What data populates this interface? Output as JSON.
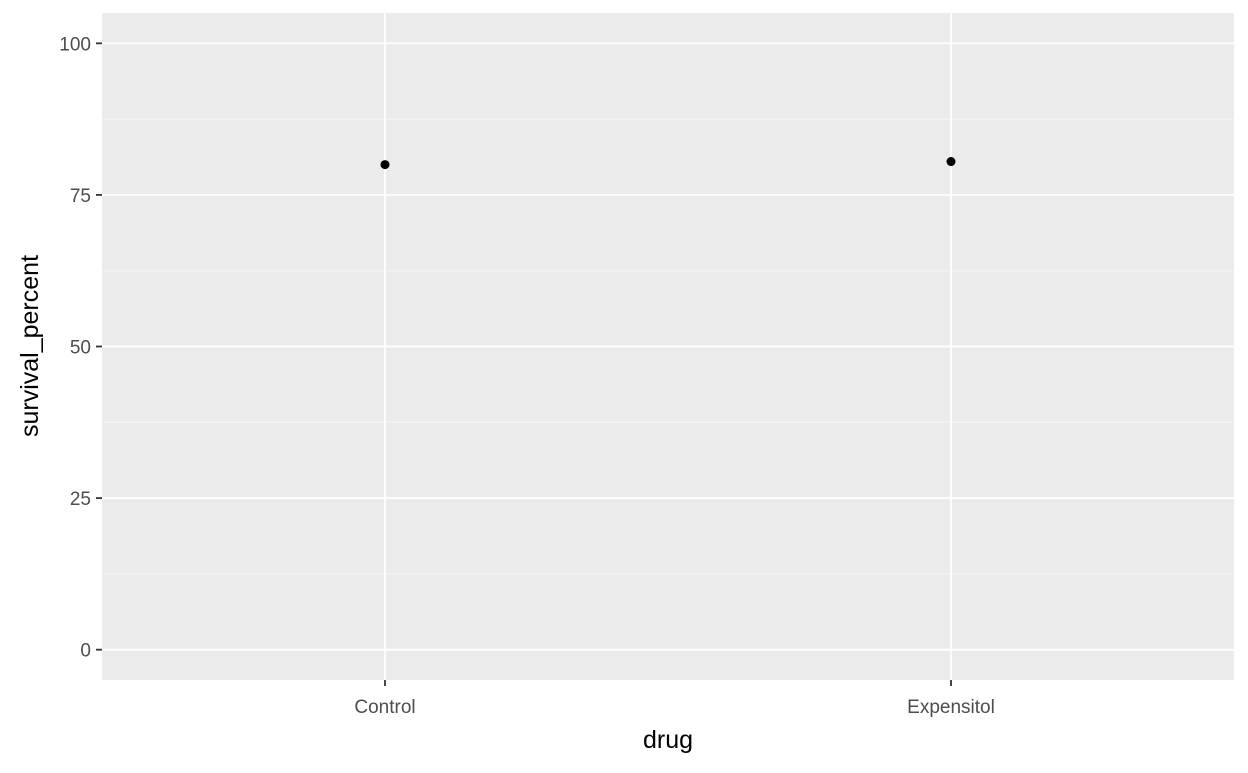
{
  "chart_data": {
    "type": "scatter",
    "title": "",
    "xlabel": "drug",
    "ylabel": "survival_percent",
    "categories": [
      "Control",
      "Expensitol"
    ],
    "values": [
      80.0,
      80.5
    ],
    "ylim": [
      -5,
      105
    ],
    "yticks": [
      0,
      25,
      50,
      75,
      100
    ],
    "ytick_labels": [
      "0",
      "25",
      "50",
      "75",
      "100"
    ],
    "grid": true,
    "legend": "none",
    "colors": {
      "panel_background": "#ebebeb",
      "grid_major": "#ffffff",
      "grid_minor": "#f5f5f5",
      "point": "#000000",
      "tick_mark": "#333333",
      "tick_label": "#4d4d4d",
      "axis_title": "#000000"
    }
  }
}
